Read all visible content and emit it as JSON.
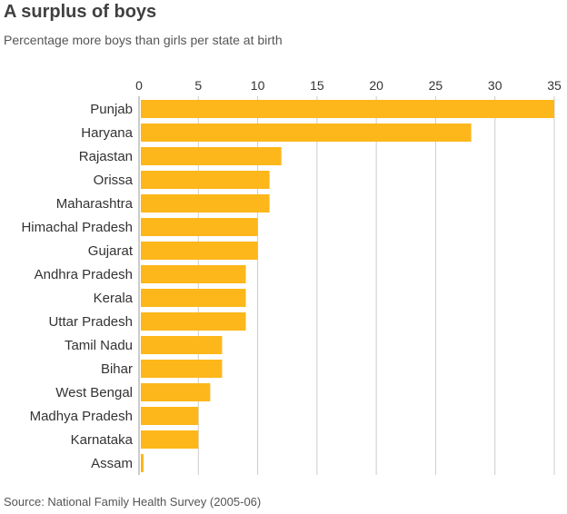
{
  "title": "A surplus of boys",
  "subtitle": "Percentage more boys than girls per state at birth",
  "source": "Source: National Family Health Survey (2005-06)",
  "colors": {
    "bar": "#FDB71A",
    "grid": "#cccccc",
    "axis": "#999999",
    "text": "#333333"
  },
  "chart_data": {
    "type": "bar",
    "orientation": "horizontal",
    "title": "A surplus of boys",
    "subtitle": "Percentage more boys than girls per state at birth",
    "xlabel": "",
    "ylabel": "",
    "xlim": [
      0,
      35
    ],
    "xticks": [
      0,
      5,
      10,
      15,
      20,
      25,
      30,
      35
    ],
    "tick_position": "top",
    "grid": true,
    "legend": "none",
    "categories": [
      "Punjab",
      "Haryana",
      "Rajastan",
      "Orissa",
      "Maharashtra",
      "Himachal Pradesh",
      "Gujarat",
      "Andhra Pradesh",
      "Kerala",
      "Uttar Pradesh",
      "Tamil Nadu",
      "Bihar",
      "West Bengal",
      "Madhya Pradesh",
      "Karnataka",
      "Assam"
    ],
    "values": [
      35,
      28,
      12,
      11,
      11,
      10,
      10,
      9,
      9,
      9,
      7,
      7,
      6,
      5,
      5,
      0.3
    ]
  }
}
